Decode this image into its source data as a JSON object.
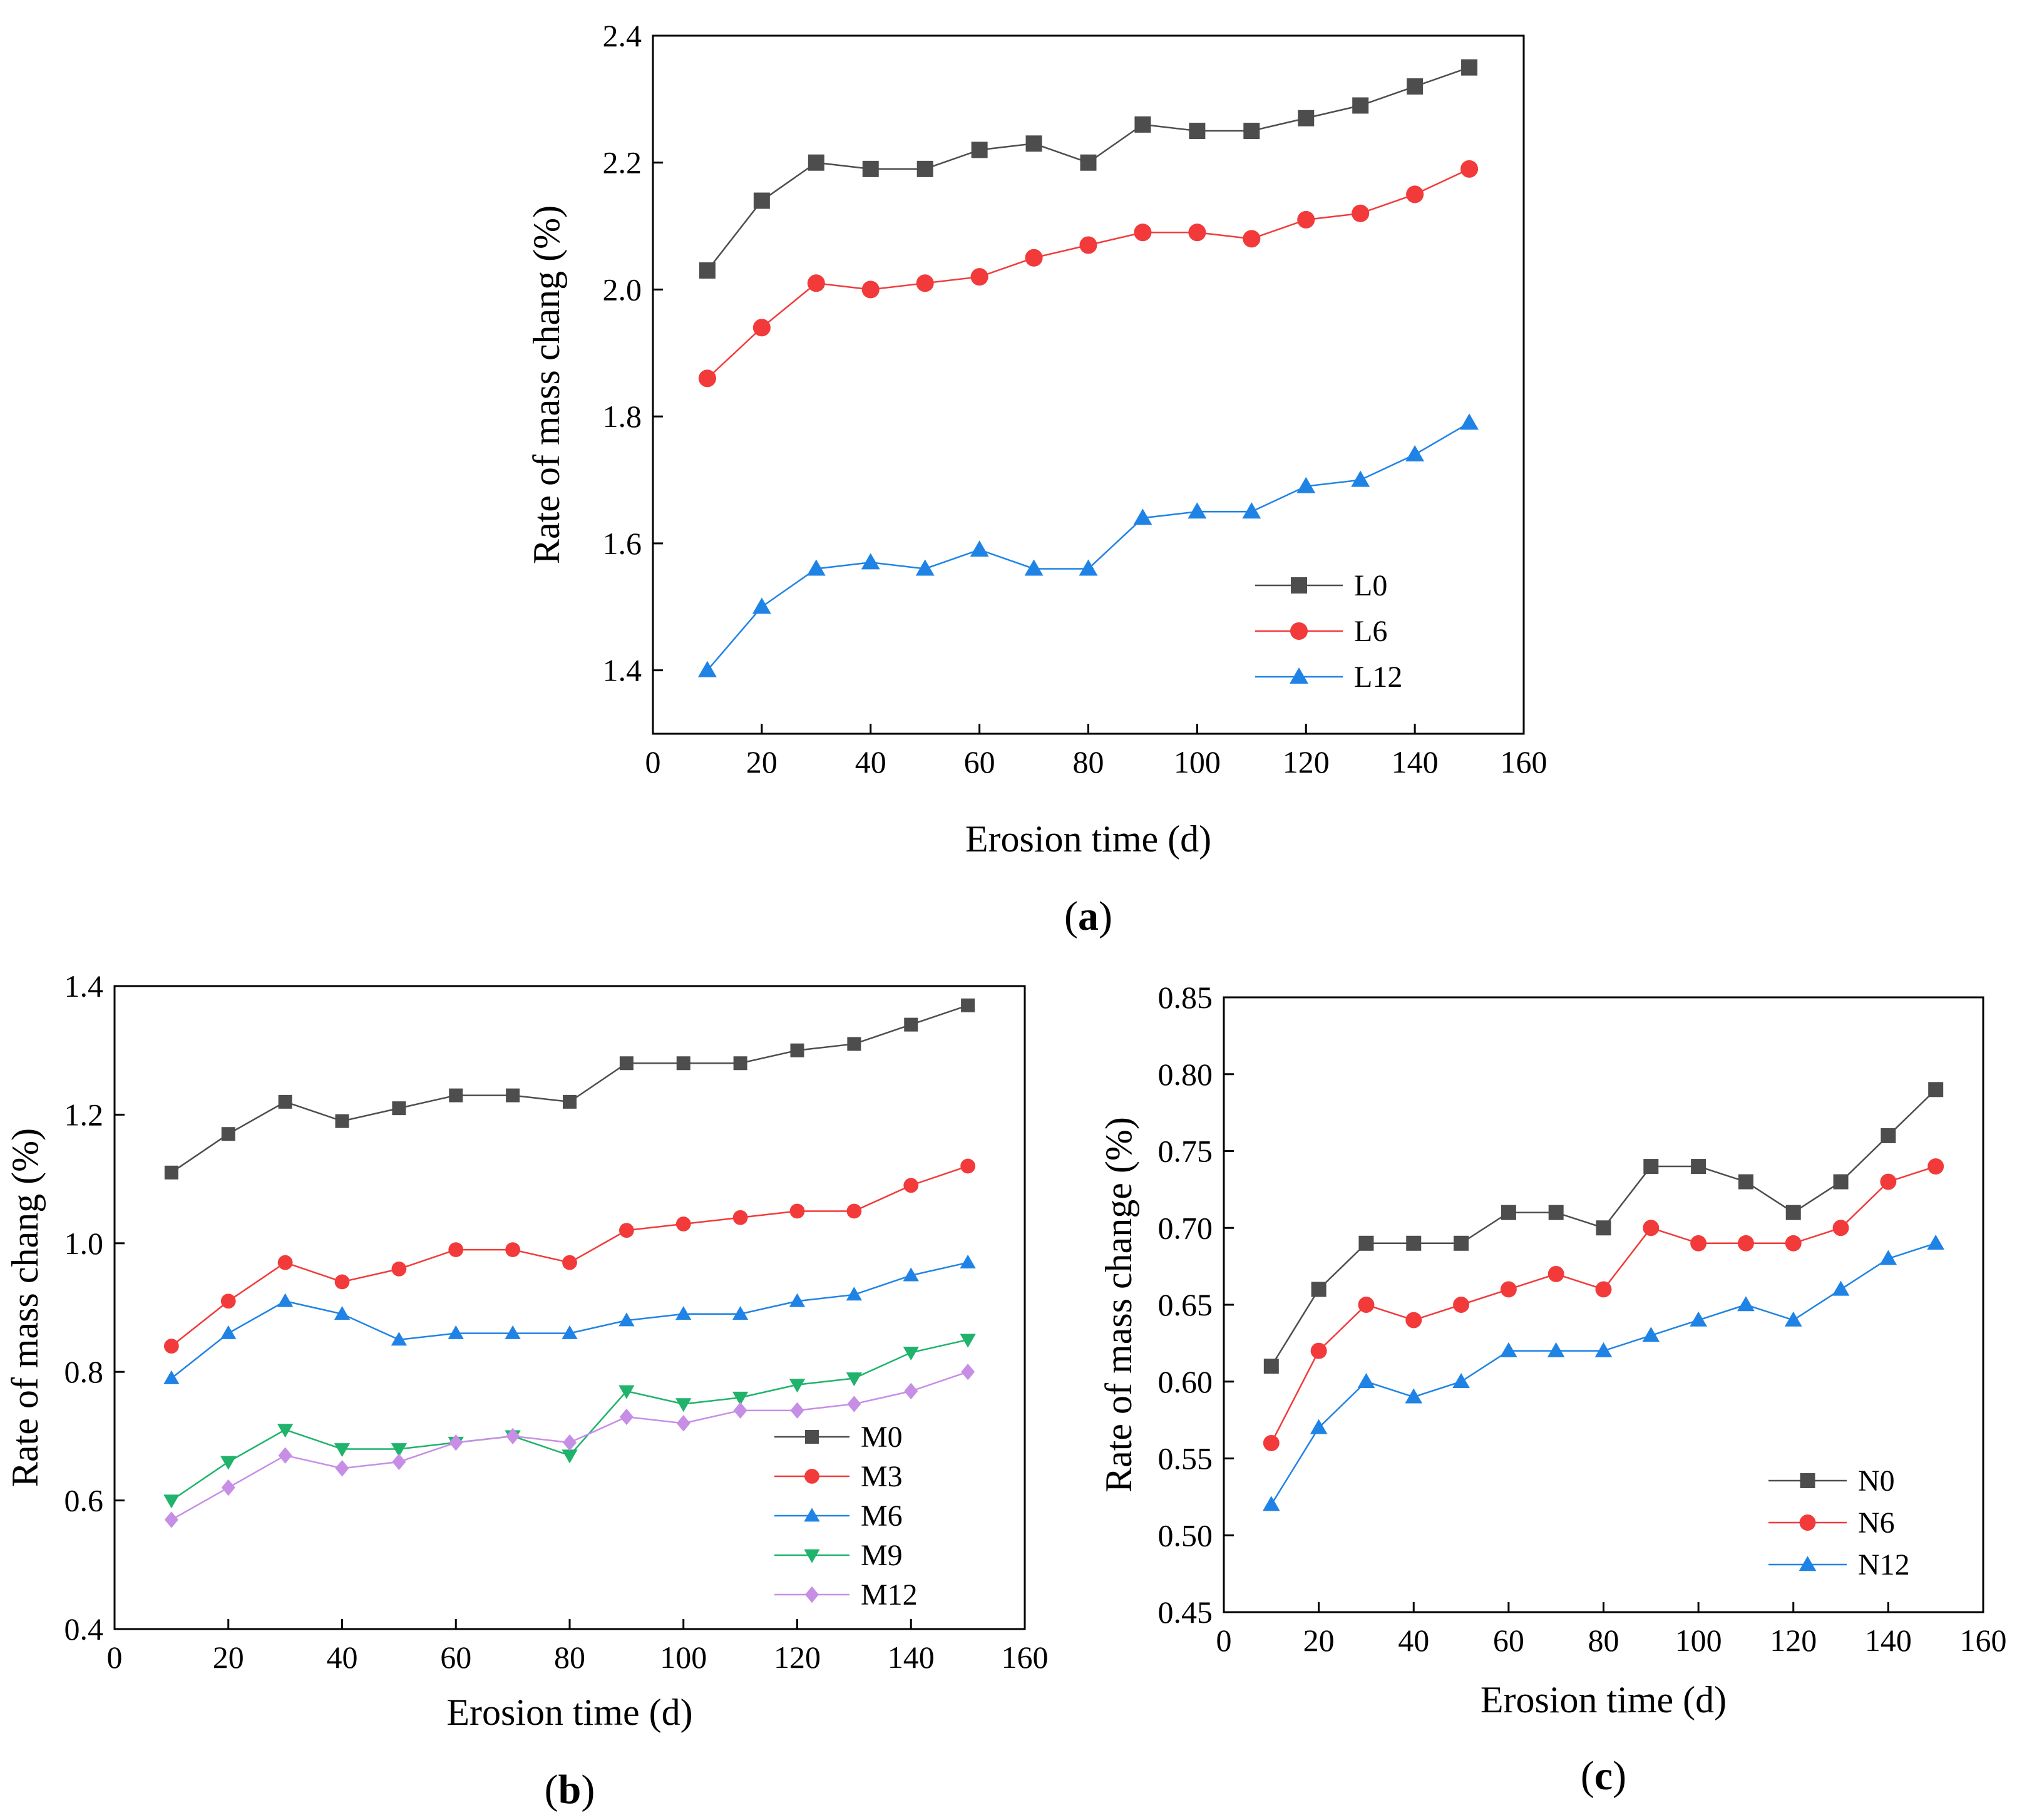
{
  "chart_data": [
    {
      "type": "line",
      "panel_label": "a",
      "xlabel": "Erosion time (d)",
      "ylabel": "Rate of mass chang (%)",
      "xlim": [
        0,
        160
      ],
      "ylim": [
        1.3,
        2.4
      ],
      "xticks": [
        0,
        20,
        40,
        60,
        80,
        100,
        120,
        140,
        160
      ],
      "yticks": [
        1.4,
        1.6,
        1.8,
        2.0,
        2.2,
        2.4
      ],
      "ytick_labels": [
        "1.4",
        "1.6",
        "1.8",
        "2.0",
        "2.2",
        "2.4"
      ],
      "legend_position": "bottom-right",
      "x": [
        10,
        20,
        30,
        40,
        50,
        60,
        70,
        80,
        90,
        100,
        110,
        120,
        130,
        140,
        150
      ],
      "series": [
        {
          "name": "L0",
          "color": "#4d4d4d",
          "marker": "square",
          "values": [
            2.03,
            2.14,
            2.2,
            2.19,
            2.19,
            2.22,
            2.23,
            2.2,
            2.26,
            2.25,
            2.25,
            2.27,
            2.29,
            2.32,
            2.35
          ]
        },
        {
          "name": "L6",
          "color": "#f23a3a",
          "marker": "circle",
          "values": [
            1.86,
            1.94,
            2.01,
            2.0,
            2.01,
            2.02,
            2.05,
            2.07,
            2.09,
            2.09,
            2.08,
            2.11,
            2.12,
            2.15,
            2.19
          ]
        },
        {
          "name": "L12",
          "color": "#1f83e6",
          "marker": "triangle-up",
          "values": [
            1.4,
            1.5,
            1.56,
            1.57,
            1.56,
            1.59,
            1.56,
            1.56,
            1.64,
            1.65,
            1.65,
            1.69,
            1.7,
            1.74,
            1.79
          ]
        }
      ]
    },
    {
      "type": "line",
      "panel_label": "b",
      "xlabel": "Erosion time (d)",
      "ylabel": "Rate of mass chang (%)",
      "xlim": [
        0,
        160
      ],
      "ylim": [
        0.4,
        1.4
      ],
      "xticks": [
        0,
        20,
        40,
        60,
        80,
        100,
        120,
        140,
        160
      ],
      "yticks": [
        0.4,
        0.6,
        0.8,
        1.0,
        1.2,
        1.4
      ],
      "ytick_labels": [
        "0.4",
        "0.6",
        "0.8",
        "1.0",
        "1.2",
        "1.4"
      ],
      "legend_position": "bottom-right",
      "x": [
        10,
        20,
        30,
        40,
        50,
        60,
        70,
        80,
        90,
        100,
        110,
        120,
        130,
        140,
        150
      ],
      "series": [
        {
          "name": "M0",
          "color": "#4d4d4d",
          "marker": "square",
          "values": [
            1.11,
            1.17,
            1.22,
            1.19,
            1.21,
            1.23,
            1.23,
            1.22,
            1.28,
            1.28,
            1.28,
            1.3,
            1.31,
            1.34,
            1.37
          ]
        },
        {
          "name": "M3",
          "color": "#f23a3a",
          "marker": "circle",
          "values": [
            0.84,
            0.91,
            0.97,
            0.94,
            0.96,
            0.99,
            0.99,
            0.97,
            1.02,
            1.03,
            1.04,
            1.05,
            1.05,
            1.09,
            1.12
          ]
        },
        {
          "name": "M6",
          "color": "#1f83e6",
          "marker": "triangle-up",
          "values": [
            0.79,
            0.86,
            0.91,
            0.89,
            0.85,
            0.86,
            0.86,
            0.86,
            0.88,
            0.89,
            0.89,
            0.91,
            0.92,
            0.95,
            0.97
          ]
        },
        {
          "name": "M9",
          "color": "#1fb36b",
          "marker": "triangle-down",
          "values": [
            0.6,
            0.66,
            0.71,
            0.68,
            0.68,
            0.69,
            0.7,
            0.67,
            0.77,
            0.75,
            0.76,
            0.78,
            0.79,
            0.83,
            0.85
          ]
        },
        {
          "name": "M12",
          "color": "#c78ee6",
          "marker": "diamond",
          "values": [
            0.57,
            0.62,
            0.67,
            0.65,
            0.66,
            0.69,
            0.7,
            0.69,
            0.73,
            0.72,
            0.74,
            0.74,
            0.75,
            0.77,
            0.8
          ]
        }
      ]
    },
    {
      "type": "line",
      "panel_label": "c",
      "xlabel": "Erosion time (d)",
      "ylabel": "Rate of mass change (%)",
      "xlim": [
        0,
        160
      ],
      "ylim": [
        0.45,
        0.85
      ],
      "xticks": [
        0,
        20,
        40,
        60,
        80,
        100,
        120,
        140,
        160
      ],
      "yticks": [
        0.45,
        0.5,
        0.55,
        0.6,
        0.65,
        0.7,
        0.75,
        0.8,
        0.85
      ],
      "ytick_labels": [
        "0.45",
        "0.50",
        "0.55",
        "0.60",
        "0.65",
        "0.70",
        "0.75",
        "0.80",
        "0.85"
      ],
      "legend_position": "bottom-right",
      "x": [
        10,
        20,
        30,
        40,
        50,
        60,
        70,
        80,
        90,
        100,
        110,
        120,
        130,
        140,
        150
      ],
      "series": [
        {
          "name": "N0",
          "color": "#4d4d4d",
          "marker": "square",
          "values": [
            0.61,
            0.66,
            0.69,
            0.69,
            0.69,
            0.71,
            0.71,
            0.7,
            0.74,
            0.74,
            0.73,
            0.71,
            0.73,
            0.76,
            0.79
          ]
        },
        {
          "name": "N6",
          "color": "#f23a3a",
          "marker": "circle",
          "values": [
            0.56,
            0.62,
            0.65,
            0.64,
            0.65,
            0.66,
            0.67,
            0.66,
            0.7,
            0.69,
            0.69,
            0.69,
            0.7,
            0.73,
            0.74
          ]
        },
        {
          "name": "N12",
          "color": "#1f83e6",
          "marker": "triangle-up",
          "values": [
            0.52,
            0.57,
            0.6,
            0.59,
            0.6,
            0.62,
            0.62,
            0.62,
            0.63,
            0.64,
            0.65,
            0.64,
            0.66,
            0.68,
            0.69
          ]
        }
      ]
    }
  ]
}
